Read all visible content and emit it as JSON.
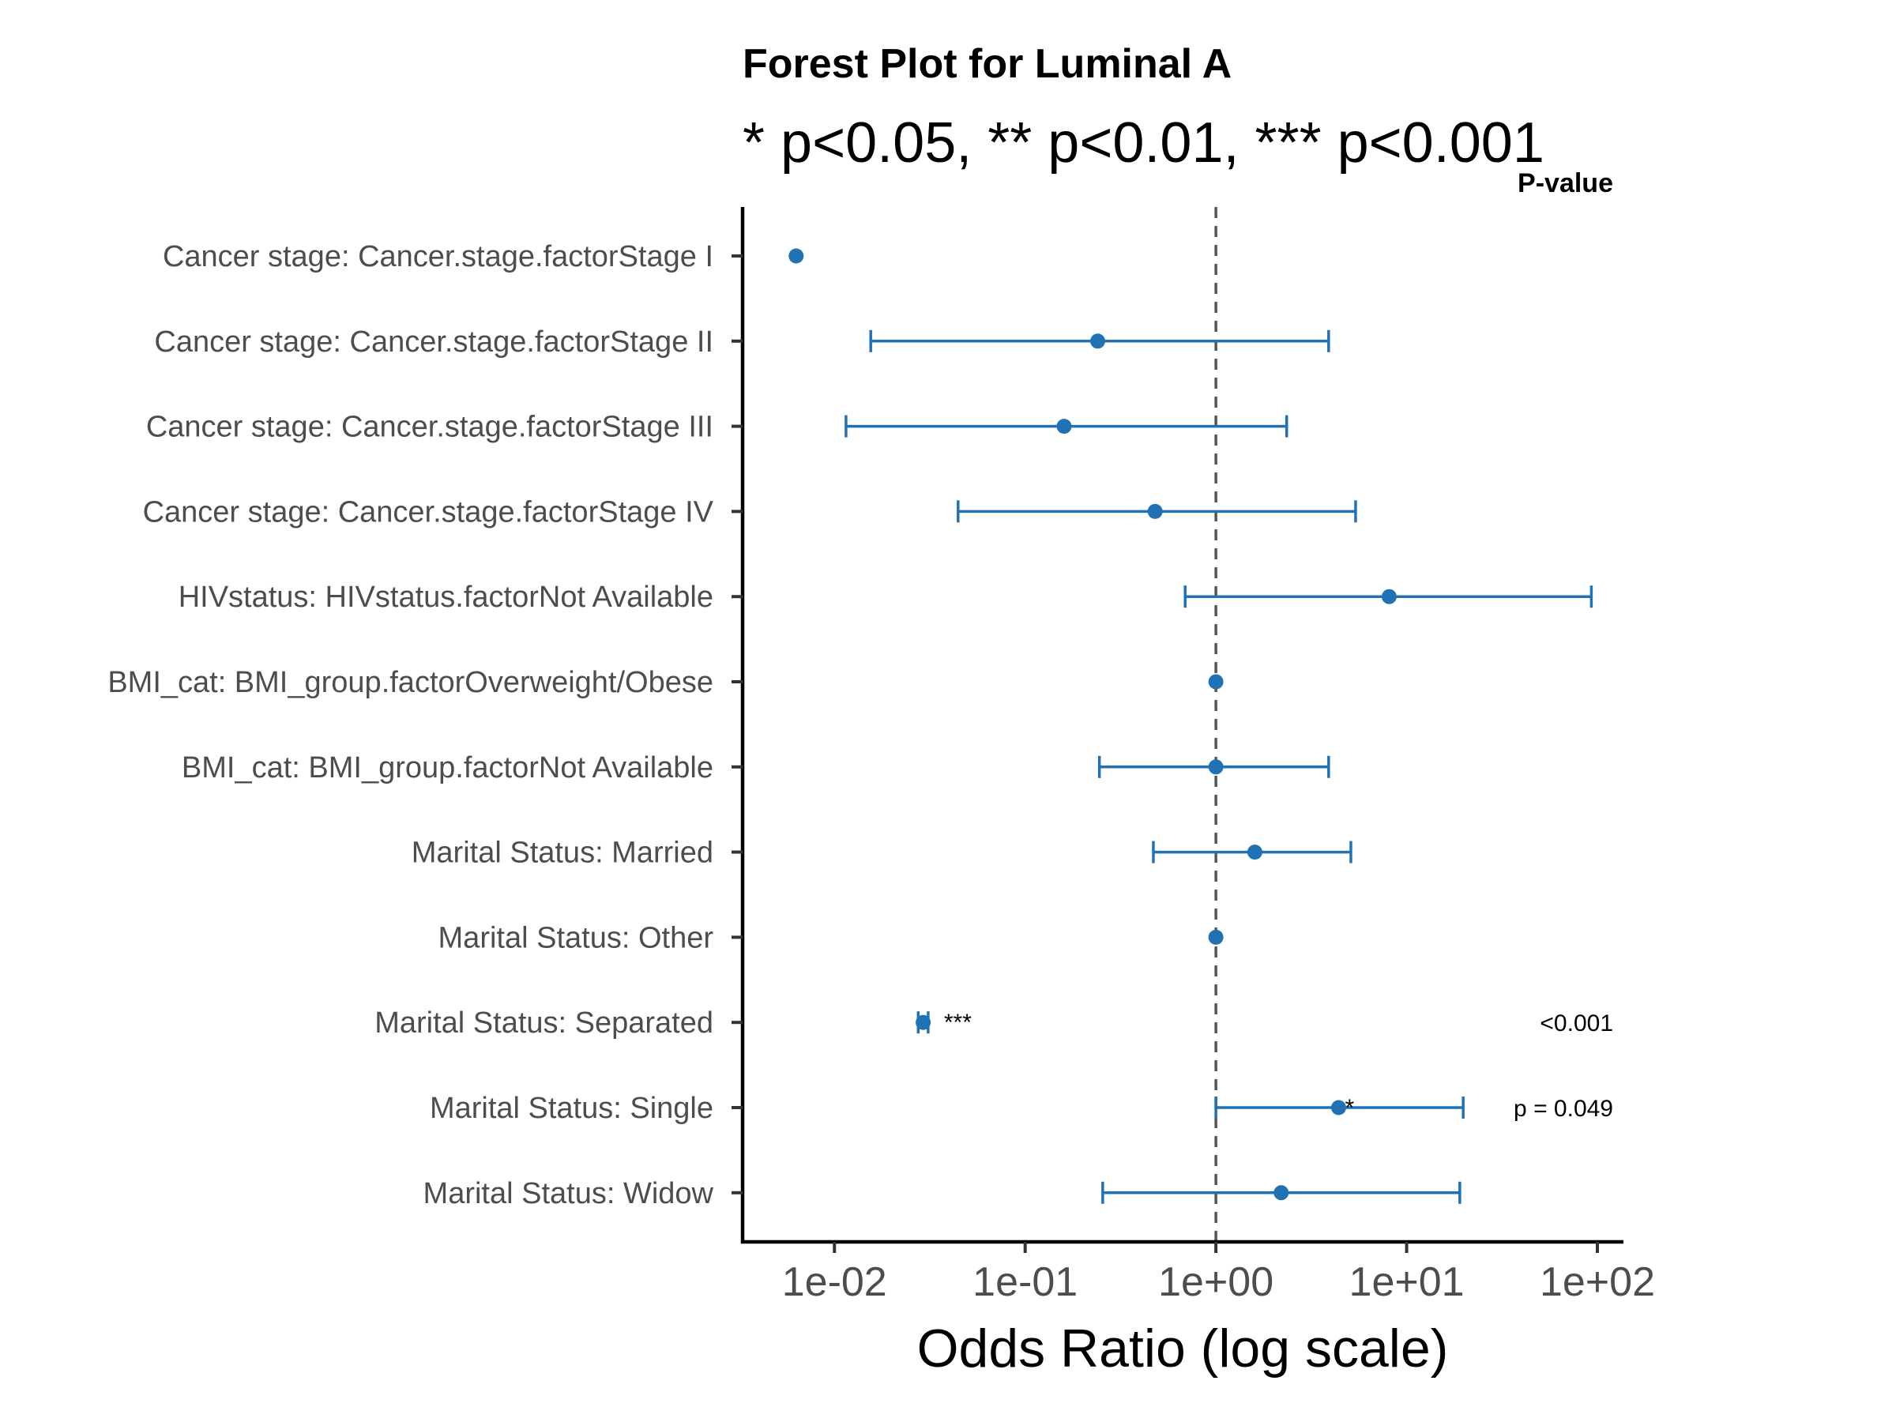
{
  "chart_data": {
    "type": "forest",
    "title": "Forest Plot for Luminal A",
    "subtitle": "* p<0.05, ** p<0.01, *** p<0.001",
    "xlabel": "Odds Ratio (log scale)",
    "pvalue_header": "P-value",
    "x_scale": "log10",
    "xlim": [
      0.0033,
      137
    ],
    "x_ticks": [
      0.01,
      0.1,
      1,
      10,
      100
    ],
    "x_tick_labels": [
      "1e-02",
      "1e-01",
      "1e+00",
      "1e+01",
      "1e+02"
    ],
    "reference_line": 1,
    "point_color": "#2171b5",
    "rows": [
      {
        "label": "Cancer stage: Cancer.stage.factorStage I",
        "or": 0.0063,
        "low": null,
        "high": null,
        "stars": "",
        "p_label": ""
      },
      {
        "label": "Cancer stage: Cancer.stage.factorStage II",
        "or": 0.24,
        "low": 0.0155,
        "high": 3.9,
        "stars": "",
        "p_label": ""
      },
      {
        "label": "Cancer stage: Cancer.stage.factorStage III",
        "or": 0.16,
        "low": 0.0115,
        "high": 2.35,
        "stars": "",
        "p_label": ""
      },
      {
        "label": "Cancer stage: Cancer.stage.factorStage IV",
        "or": 0.48,
        "low": 0.0445,
        "high": 5.4,
        "stars": "",
        "p_label": ""
      },
      {
        "label": "HIVstatus: HIVstatus.factorNot Available",
        "or": 8.1,
        "low": 0.69,
        "high": 93,
        "stars": "",
        "p_label": ""
      },
      {
        "label": "BMI_cat: BMI_group.factorOverweight/Obese",
        "or": 1.0,
        "low": null,
        "high": null,
        "stars": "",
        "p_label": ""
      },
      {
        "label": "BMI_cat: BMI_group.factorNot Available",
        "or": 1.0,
        "low": 0.245,
        "high": 3.9,
        "stars": "",
        "p_label": ""
      },
      {
        "label": "Marital Status: Married",
        "or": 1.6,
        "low": 0.47,
        "high": 5.1,
        "stars": "",
        "p_label": ""
      },
      {
        "label": "Marital Status: Other",
        "or": 1.0,
        "low": null,
        "high": null,
        "stars": "",
        "p_label": ""
      },
      {
        "label": "Marital Status: Separated",
        "or": 0.0292,
        "low": 0.0275,
        "high": 0.031,
        "stars": "***",
        "p_label": "<0.001"
      },
      {
        "label": "Marital Status: Single",
        "or": 4.4,
        "low": 1.0,
        "high": 19.8,
        "stars": "*",
        "p_label": "p = 0.049"
      },
      {
        "label": "Marital Status: Widow",
        "or": 2.2,
        "low": 0.255,
        "high": 19.0,
        "stars": "",
        "p_label": ""
      }
    ]
  }
}
